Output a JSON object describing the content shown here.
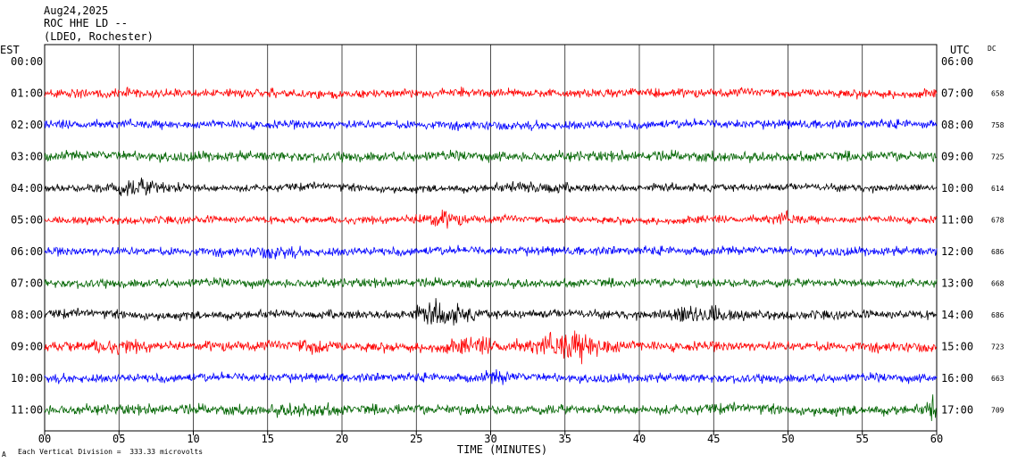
{
  "header": {
    "date": "Aug24,2025",
    "station": "ROC HHE LD --",
    "network": "(LDEO, Rochester)"
  },
  "left_axis_label": "EST",
  "right_axis_label": "UTC",
  "dc_header": "DC",
  "footer": {
    "mark": "A",
    "scale_note": "Each Vertical Division =  333.33 microvolts"
  },
  "colors": {
    "red": "#ff0000",
    "blue": "#0000ff",
    "green": "#006400",
    "black": "#000000",
    "grid": "#000000"
  },
  "chart_data": {
    "type": "line",
    "title": "ROC HHE LD --",
    "xlabel": "TIME (MINUTES)",
    "xlim": [
      0,
      60
    ],
    "xticks": [
      "00",
      "05",
      "10",
      "15",
      "20",
      "25",
      "30",
      "35",
      "40",
      "45",
      "50",
      "55",
      "60"
    ],
    "grid": true,
    "series": [
      {
        "est": "00:00",
        "utc": "06:00",
        "dc": "",
        "color": "",
        "amp": 0,
        "events": []
      },
      {
        "est": "01:00",
        "utc": "07:00",
        "dc": "658",
        "color": "#ff0000",
        "amp": 7,
        "events": []
      },
      {
        "est": "02:00",
        "utc": "08:00",
        "dc": "758",
        "color": "#0000ff",
        "amp": 7,
        "events": []
      },
      {
        "est": "03:00",
        "utc": "09:00",
        "dc": "725",
        "color": "#006400",
        "amp": 8,
        "events": []
      },
      {
        "est": "04:00",
        "utc": "10:00",
        "dc": "614",
        "color": "#000000",
        "amp": 6,
        "events": [
          [
            6.5,
            2.5,
            2.5
          ],
          [
            33,
            2,
            2
          ]
        ]
      },
      {
        "est": "05:00",
        "utc": "11:00",
        "dc": "678",
        "color": "#ff0000",
        "amp": 6,
        "events": [
          [
            26.5,
            1.5,
            2.5
          ],
          [
            49.8,
            1,
            2
          ]
        ]
      },
      {
        "est": "06:00",
        "utc": "12:00",
        "dc": "686",
        "color": "#0000ff",
        "amp": 7,
        "events": [
          [
            15.5,
            1.2,
            1.8
          ]
        ]
      },
      {
        "est": "07:00",
        "utc": "13:00",
        "dc": "668",
        "color": "#006400",
        "amp": 7,
        "events": []
      },
      {
        "est": "08:00",
        "utc": "14:00",
        "dc": "686",
        "color": "#000000",
        "amp": 7,
        "events": [
          [
            26.7,
            1.8,
            2.8
          ],
          [
            44,
            1.6,
            3
          ]
        ]
      },
      {
        "est": "09:00",
        "utc": "15:00",
        "dc": "723",
        "color": "#ff0000",
        "amp": 8,
        "events": [
          [
            4.5,
            2,
            1.6
          ],
          [
            18,
            1,
            1.8
          ],
          [
            29,
            2,
            1.8
          ],
          [
            35.5,
            2.5,
            3.2
          ]
        ]
      },
      {
        "est": "10:00",
        "utc": "16:00",
        "dc": "663",
        "color": "#0000ff",
        "amp": 7,
        "events": [
          [
            30.5,
            1,
            1.8
          ]
        ]
      },
      {
        "est": "11:00",
        "utc": "17:00",
        "dc": "709",
        "color": "#006400",
        "amp": 8,
        "events": [
          [
            17.5,
            2,
            1.6
          ],
          [
            59.8,
            0.5,
            3
          ]
        ]
      }
    ]
  }
}
